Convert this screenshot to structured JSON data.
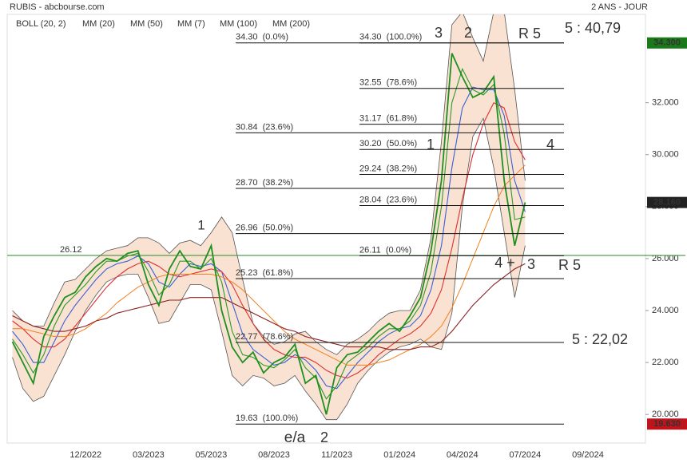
{
  "header": {
    "title": "RUBIS - abcbourse.com",
    "period": "2 ANS - JOUR"
  },
  "chart_data": {
    "type": "line",
    "categories": [
      null,
      null,
      null,
      null,
      null,
      null,
      null,
      "12/2022",
      null,
      null,
      null,
      null,
      null,
      "03/2023",
      null,
      null,
      null,
      null,
      null,
      "05/2023",
      null,
      null,
      null,
      null,
      null,
      "08/2023",
      null,
      null,
      null,
      null,
      null,
      "11/2023",
      null,
      null,
      null,
      null,
      null,
      "01/2024",
      null,
      null,
      null,
      null,
      null,
      "04/2024",
      null,
      null,
      null,
      null,
      null,
      "07/2024",
      null,
      null,
      null,
      null,
      null,
      "09/2024",
      null,
      null,
      null,
      null,
      null
    ],
    "values": [
      22.8,
      22.0,
      21.2,
      23.0,
      23.8,
      24.5,
      24.7,
      25.3,
      25.7,
      26.0,
      25.9,
      26.2,
      26.3,
      25.0,
      24.2,
      25.6,
      26.3,
      25.7,
      25.6,
      26.5,
      24.0,
      22.6,
      22.0,
      22.4,
      21.6,
      22.0,
      22.2,
      22.7,
      21.2,
      21.5,
      20.0,
      21.8,
      22.3,
      22.4,
      22.8,
      23.2,
      23.5,
      23.2,
      23.8,
      24.5,
      26.3,
      29.0,
      33.9,
      33.0,
      32.2,
      32.4,
      33.0,
      29.0,
      26.5,
      28.16,
      null,
      null,
      null,
      null,
      null,
      null,
      null,
      null,
      null,
      null,
      null
    ],
    "color": "#1f8f1f",
    "series": [
      {
        "name": "BOLL (20, 2)",
        "color": "#c0504d",
        "upper": [
          24.0,
          23.6,
          23.4,
          23.4,
          24.3,
          25.1,
          25.2,
          25.6,
          26.0,
          26.3,
          26.4,
          26.5,
          26.8,
          26.8,
          26.6,
          26.2,
          26.6,
          26.7,
          26.5,
          27.0,
          27.6,
          27.0,
          25.2,
          23.5,
          23.0,
          22.7,
          22.8,
          23.1,
          23.2,
          22.8,
          22.5,
          22.3,
          22.7,
          22.9,
          23.2,
          23.6,
          23.9,
          24.0,
          24.0,
          24.8,
          26.8,
          30.5,
          35.0,
          35.5,
          34.5,
          33.6,
          35.5,
          35.5,
          32.5,
          29.0,
          null,
          null,
          null,
          null,
          null,
          null,
          null,
          null,
          null,
          null,
          null
        ],
        "lower": [
          22.2,
          21.0,
          20.5,
          20.7,
          21.5,
          22.3,
          23.2,
          24.0,
          24.6,
          25.1,
          25.3,
          25.4,
          25.4,
          24.5,
          23.5,
          23.6,
          24.3,
          25.0,
          25.0,
          24.8,
          23.2,
          21.5,
          21.1,
          21.5,
          21.4,
          21.1,
          21.2,
          21.5,
          20.9,
          20.4,
          19.8,
          19.8,
          20.4,
          21.2,
          21.7,
          22.1,
          22.4,
          22.6,
          22.7,
          22.9,
          22.6,
          22.5,
          23.9,
          28.0,
          30.7,
          31.4,
          29.5,
          27.0,
          24.5,
          26.5,
          null,
          null,
          null,
          null,
          null,
          null,
          null,
          null,
          null,
          null,
          null
        ]
      },
      {
        "name": "MM (20)",
        "color": "#3a5fd8",
        "values": [
          23.2,
          22.7,
          22.0,
          22.0,
          22.8,
          23.6,
          24.2,
          24.7,
          25.2,
          25.6,
          25.8,
          25.9,
          26.1,
          25.8,
          25.1,
          24.9,
          25.4,
          25.8,
          25.7,
          25.8,
          25.5,
          24.3,
          23.1,
          22.5,
          22.2,
          21.9,
          22.0,
          22.3,
          22.1,
          21.7,
          21.1,
          21.0,
          21.5,
          22.0,
          22.4,
          22.8,
          23.1,
          23.3,
          23.4,
          23.8,
          24.8,
          26.5,
          29.5,
          31.8,
          32.6,
          32.5,
          32.5,
          31.5,
          29.0,
          27.8,
          null,
          null,
          null,
          null,
          null,
          null,
          null,
          null,
          null,
          null,
          null
        ]
      },
      {
        "name": "MM (50)",
        "color": "#e03030",
        "values": [
          23.6,
          23.3,
          22.9,
          22.6,
          22.6,
          22.9,
          23.4,
          23.9,
          24.4,
          24.9,
          25.3,
          25.6,
          25.8,
          25.9,
          25.7,
          25.4,
          25.3,
          25.4,
          25.5,
          25.6,
          25.5,
          25.0,
          24.2,
          23.5,
          22.9,
          22.5,
          22.3,
          22.2,
          22.2,
          22.0,
          21.7,
          21.5,
          21.4,
          21.6,
          21.9,
          22.3,
          22.6,
          22.9,
          23.1,
          23.4,
          23.9,
          24.8,
          26.4,
          28.3,
          30.0,
          31.2,
          32.0,
          31.8,
          30.5,
          29.8,
          null,
          null,
          null,
          null,
          null,
          null,
          null,
          null,
          null,
          null,
          null
        ]
      },
      {
        "name": "MM (7)",
        "color": "#2a9a2a",
        "values": [
          22.9,
          22.3,
          21.6,
          22.3,
          23.4,
          24.2,
          24.6,
          25.0,
          25.5,
          25.9,
          25.9,
          26.1,
          26.2,
          25.5,
          24.6,
          25.0,
          25.9,
          25.9,
          25.6,
          26.0,
          25.1,
          23.2,
          22.3,
          22.2,
          21.9,
          21.8,
          22.1,
          22.5,
          21.8,
          21.4,
          20.6,
          21.1,
          22.0,
          22.3,
          22.6,
          23.0,
          23.3,
          23.3,
          23.6,
          24.2,
          25.5,
          28.0,
          32.0,
          33.3,
          32.5,
          32.3,
          32.7,
          30.8,
          27.5,
          27.6,
          null,
          null,
          null,
          null,
          null,
          null,
          null,
          null,
          null,
          null,
          null
        ]
      },
      {
        "name": "MM (100)",
        "color": "#f08020",
        "values": [
          23.3,
          23.3,
          23.2,
          23.1,
          23.0,
          23.0,
          23.1,
          23.3,
          23.6,
          23.9,
          24.3,
          24.6,
          24.9,
          25.1,
          25.3,
          25.4,
          25.4,
          25.4,
          25.4,
          25.4,
          25.3,
          25.1,
          24.8,
          24.4,
          24.0,
          23.6,
          23.2,
          22.9,
          22.7,
          22.5,
          22.3,
          22.1,
          21.9,
          21.9,
          21.9,
          22.0,
          22.1,
          22.3,
          22.5,
          22.7,
          23.0,
          23.4,
          24.1,
          25.0,
          26.0,
          27.0,
          28.0,
          28.8,
          29.2,
          29.6,
          null,
          null,
          null,
          null,
          null,
          null,
          null,
          null,
          null,
          null,
          null
        ]
      },
      {
        "name": "MM (200)",
        "color": "#8b2020",
        "values": [
          23.8,
          23.6,
          23.4,
          23.3,
          23.2,
          23.2,
          23.3,
          23.4,
          23.6,
          23.7,
          23.9,
          24.0,
          24.1,
          24.2,
          24.3,
          24.4,
          24.4,
          24.5,
          24.5,
          24.5,
          24.5,
          24.3,
          24.1,
          23.9,
          23.7,
          23.5,
          23.3,
          23.2,
          23.0,
          22.9,
          22.8,
          22.7,
          22.6,
          22.6,
          22.6,
          22.6,
          22.5,
          22.5,
          22.5,
          22.6,
          22.6,
          22.8,
          23.2,
          23.7,
          24.2,
          24.6,
          25.0,
          25.3,
          25.6,
          25.8,
          null,
          null,
          null,
          null,
          null,
          null,
          null,
          null,
          null,
          null,
          null
        ]
      }
    ],
    "ylim": [
      18.9,
      35.4
    ],
    "yticks": [
      {
        "value": 20,
        "label": "20.000"
      },
      {
        "value": 22,
        "label": "22.000"
      },
      {
        "value": 24,
        "label": "24.000"
      },
      {
        "value": 26,
        "label": "26.000"
      },
      {
        "value": 28,
        "label": "28.000"
      },
      {
        "value": 30,
        "label": "30.000"
      },
      {
        "value": 32,
        "label": "32.000"
      }
    ],
    "price_markers": [
      {
        "value": 34.3,
        "label": "34.300",
        "color": "#1a7a1a"
      },
      {
        "value": 28.16,
        "label": "28.160",
        "color": "#222222"
      },
      {
        "value": 19.63,
        "label": "19.630",
        "color": "#c0141c"
      }
    ],
    "fib_left": [
      {
        "value": 34.3,
        "label": "34.30  (0.0%)"
      },
      {
        "value": 30.84,
        "label": "30.84  (23.6%)"
      },
      {
        "value": 28.7,
        "label": "28.70  (38.2%)"
      },
      {
        "value": 26.96,
        "label": "26.96  (50.0%)"
      },
      {
        "value": 25.23,
        "label": "25.23  (61.8%)"
      },
      {
        "value": 22.77,
        "label": "22.77  (78.6%)"
      },
      {
        "value": 19.63,
        "label": "19.63  (100.0%)"
      }
    ],
    "fib_right": [
      {
        "value": 34.3,
        "label": "34.30  (100.0%)"
      },
      {
        "value": 32.55,
        "label": "32.55  (78.6%)"
      },
      {
        "value": 31.17,
        "label": "31.17  (61.8%)"
      },
      {
        "value": 30.2,
        "label": "30.20  (50.0%)"
      },
      {
        "value": 29.24,
        "label": "29.24  (38.2%)"
      },
      {
        "value": 28.04,
        "label": "28.04  (23.6%)"
      },
      {
        "value": 26.11,
        "label": "26.11  (0.0%)"
      }
    ],
    "level": 26.12,
    "level_color": "#2a8a2a",
    "annotations": [
      {
        "text": "1",
        "color": "#2a2a9a"
      },
      {
        "text": "3",
        "color": "#2a2a9a"
      },
      {
        "text": "2",
        "color": "#c0141c"
      },
      {
        "text": "R 5",
        "color": "#1a1a7a"
      },
      {
        "text": "5 : 40,79",
        "color": "#1a1a7a"
      },
      {
        "text": "1",
        "color": "#c0141c"
      },
      {
        "text": "4",
        "color": "#c0141c"
      },
      {
        "text": "4 +",
        "color": "#2a2a9a"
      },
      {
        "text": "3",
        "color": "#c0141c"
      },
      {
        "text": "R 5",
        "color": "#c0141c"
      },
      {
        "text": "5 : 22,02",
        "color": "#c0141c"
      },
      {
        "text": "e/a",
        "color": "#c0141c"
      },
      {
        "text": "2",
        "color": "#2a2a9a"
      }
    ]
  }
}
